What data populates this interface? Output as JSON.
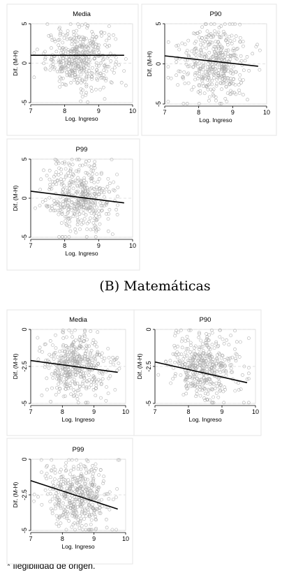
{
  "section_b_title": "(B) Matemáticas",
  "footnote": "* Ilegibilidad de origen.",
  "colors": {
    "points": "#a8a8a8",
    "fit": "#000000",
    "grid": "#d9d9d9"
  },
  "chart_data": [
    {
      "group": "A",
      "type": "scatter",
      "title": "Media",
      "xlabel": "Log. Ingreso",
      "ylabel": "Dif. (M-H)",
      "xlim": [
        7,
        10
      ],
      "ylim": [
        -5,
        5
      ],
      "xticks": [
        "7",
        "8",
        "9",
        "10"
      ],
      "yticks": [
        {
          "v": 5,
          "t": "5"
        },
        {
          "v": 0,
          "t": "0"
        },
        {
          "v": -5,
          "t": "-5"
        }
      ],
      "fit_line": {
        "x": [
          7,
          9.75
        ],
        "y": [
          1.0,
          1.0
        ]
      },
      "points": {
        "n": 420,
        "x_mean": 8.45,
        "x_sd": 0.5,
        "y_spread": 1.9
      },
      "grid": true
    },
    {
      "group": "A",
      "type": "scatter",
      "title": "P90",
      "xlabel": "Log. Ingreso",
      "ylabel": "Dif. (M-H)",
      "xlim": [
        7,
        10
      ],
      "ylim": [
        -5,
        5
      ],
      "xticks": [
        "7",
        "8",
        "9",
        "10"
      ],
      "yticks": [
        {
          "v": 5,
          "t": "5"
        },
        {
          "v": 0,
          "t": "0"
        },
        {
          "v": -5,
          "t": "-5"
        }
      ],
      "fit_line": {
        "x": [
          7,
          9.75
        ],
        "y": [
          1.0,
          -0.3
        ]
      },
      "points": {
        "n": 420,
        "x_mean": 8.45,
        "x_sd": 0.5,
        "y_spread": 2.3
      },
      "grid": true
    },
    {
      "group": "A",
      "type": "scatter",
      "title": "P99",
      "xlabel": "Log. Ingreso",
      "ylabel": "Dif. (M-H)",
      "xlim": [
        7,
        10
      ],
      "ylim": [
        -5,
        5
      ],
      "xticks": [
        "7",
        "8",
        "9",
        "10"
      ],
      "yticks": [
        {
          "v": 5,
          "t": "5"
        },
        {
          "v": 0,
          "t": "0"
        },
        {
          "v": -5,
          "t": "-5"
        }
      ],
      "fit_line": {
        "x": [
          7,
          9.75
        ],
        "y": [
          0.9,
          -0.6
        ]
      },
      "points": {
        "n": 420,
        "x_mean": 8.45,
        "x_sd": 0.5,
        "y_spread": 2.4
      },
      "grid": true
    },
    {
      "group": "B",
      "type": "scatter",
      "title": "Media",
      "xlabel": "Log. Ingreso",
      "ylabel": "Dif. (M-H)",
      "xlim": [
        7,
        10
      ],
      "ylim": [
        -5,
        0
      ],
      "xticks": [
        "7",
        "8",
        "9",
        "10"
      ],
      "yticks": [
        {
          "v": 0,
          "t": "0"
        },
        {
          "v": -2.5,
          "t": "-2.5"
        },
        {
          "v": -5,
          "t": "-5"
        }
      ],
      "fit_line": {
        "x": [
          7,
          9.75
        ],
        "y": [
          -2.1,
          -2.9
        ]
      },
      "points": {
        "n": 420,
        "x_mean": 8.45,
        "x_sd": 0.5,
        "y_center": -2.5,
        "y_spread": 1.1
      },
      "grid": true
    },
    {
      "group": "B",
      "type": "scatter",
      "title": "P90",
      "xlabel": "Log. Ingreso",
      "ylabel": "Dif. (M-H)",
      "xlim": [
        7,
        10
      ],
      "ylim": [
        -5,
        0
      ],
      "xticks": [
        "7",
        "8",
        "9",
        "10"
      ],
      "yticks": [
        {
          "v": 0,
          "t": "0"
        },
        {
          "v": -2.5,
          "t": "-2.5"
        },
        {
          "v": -5,
          "t": "-5"
        }
      ],
      "fit_line": {
        "x": [
          7,
          9.75
        ],
        "y": [
          -2.2,
          -3.6
        ]
      },
      "points": {
        "n": 420,
        "x_mean": 8.45,
        "x_sd": 0.5,
        "y_center": -2.4,
        "y_spread": 1.2
      },
      "grid": true
    },
    {
      "group": "B",
      "type": "scatter",
      "title": "P99",
      "xlabel": "Log. Ingreso",
      "ylabel": "Dif. (M-H)",
      "xlim": [
        7,
        10
      ],
      "ylim": [
        -5,
        0
      ],
      "xticks": [
        "7",
        "8",
        "9",
        "10"
      ],
      "yticks": [
        {
          "v": 0,
          "t": "0"
        },
        {
          "v": -2.5,
          "t": "-2.5"
        },
        {
          "v": -5,
          "t": "-5"
        }
      ],
      "fit_line": {
        "x": [
          7,
          9.75
        ],
        "y": [
          -1.5,
          -3.5
        ]
      },
      "points": {
        "n": 420,
        "x_mean": 8.45,
        "x_sd": 0.5,
        "y_center": -2.4,
        "y_spread": 1.2
      },
      "grid": true
    }
  ]
}
